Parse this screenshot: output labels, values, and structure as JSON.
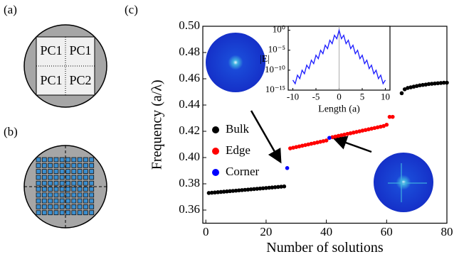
{
  "figure": {
    "panel_labels": [
      "(a)",
      "(b)",
      "(c)"
    ],
    "pc_labels": [
      "PC1",
      "PC1",
      "PC1",
      "PC2"
    ]
  },
  "chart_data": [
    {
      "type": "scatter",
      "xlabel": "Number of solutions",
      "ylabel": "Frequency (a/λ)",
      "xlim": [
        -1,
        80
      ],
      "ylim": [
        0.35,
        0.5
      ],
      "xticks": [
        0,
        20,
        40,
        60,
        80
      ],
      "yticks": [
        0.36,
        0.38,
        {
          "value": 0.4,
          "label": "0.40"
        },
        0.42,
        0.44,
        0.46,
        0.48,
        {
          "value": 0.5,
          "label": "0.50"
        }
      ],
      "legend": "left",
      "series": [
        {
          "name": "Bulk",
          "color": "#000000",
          "x": [
            1,
            2,
            3,
            4,
            5,
            6,
            7,
            8,
            9,
            10,
            11,
            12,
            13,
            14,
            15,
            16,
            17,
            18,
            19,
            20,
            21,
            22,
            23,
            24,
            25,
            26,
            65,
            66,
            67,
            68,
            69,
            70,
            71,
            72,
            73,
            74,
            75,
            76,
            77,
            78,
            79,
            80
          ],
          "values": [
            0.373,
            0.3732,
            0.3734,
            0.3736,
            0.3738,
            0.374,
            0.3742,
            0.3744,
            0.3746,
            0.3748,
            0.375,
            0.3752,
            0.3754,
            0.3756,
            0.3758,
            0.376,
            0.3762,
            0.3764,
            0.3766,
            0.3768,
            0.377,
            0.3772,
            0.3774,
            0.3776,
            0.3778,
            0.378,
            0.449,
            0.452,
            0.453,
            0.4535,
            0.454,
            0.4545,
            0.455,
            0.4553,
            0.4556,
            0.456,
            0.4562,
            0.4564,
            0.4566,
            0.4568,
            0.457,
            0.457
          ]
        },
        {
          "name": "Edge",
          "color": "#ff0000",
          "x": [
            28,
            29,
            30,
            31,
            32,
            33,
            34,
            35,
            36,
            37,
            38,
            39,
            40,
            42,
            43,
            44,
            45,
            46,
            47,
            48,
            49,
            50,
            51,
            52,
            53,
            54,
            55,
            56,
            57,
            58,
            59,
            60,
            61,
            62
          ],
          "values": [
            0.407,
            0.4075,
            0.408,
            0.4085,
            0.409,
            0.4095,
            0.41,
            0.4105,
            0.411,
            0.4115,
            0.412,
            0.4125,
            0.413,
            0.4155,
            0.416,
            0.4165,
            0.417,
            0.4175,
            0.418,
            0.4185,
            0.419,
            0.4195,
            0.42,
            0.4205,
            0.421,
            0.4215,
            0.422,
            0.4225,
            0.423,
            0.4235,
            0.424,
            0.425,
            0.431,
            0.431
          ]
        },
        {
          "name": "Corner",
          "color": "#0000ff",
          "x": [
            27,
            41
          ],
          "values": [
            0.392,
            0.415
          ]
        }
      ]
    },
    {
      "type": "line",
      "xlabel": "Length (a)",
      "ylabel": "|E|",
      "log_y": true,
      "color": "#1a1aff",
      "xlim": [
        -11,
        11
      ],
      "ylim": [
        1e-15,
        10
      ],
      "xticks": [
        -10,
        -5,
        0,
        5,
        10
      ],
      "yticks": [
        {
          "value": 1,
          "label": "10⁰"
        },
        {
          "value": 1e-05,
          "label": "10⁻⁵"
        },
        {
          "value": 1e-10,
          "label": "10⁻¹⁰"
        },
        {
          "value": 1e-15,
          "label": "10⁻¹⁵"
        }
      ],
      "x": [
        -10,
        -9.5,
        -9,
        -8.5,
        -8,
        -7.5,
        -7,
        -6.5,
        -6,
        -5.5,
        -5,
        -4.5,
        -4,
        -3.5,
        -3,
        -2.5,
        -2,
        -1.5,
        -1,
        -0.5,
        0,
        0.5,
        1,
        1.5,
        2,
        2.5,
        3,
        3.5,
        4,
        4.5,
        5,
        5.5,
        6,
        6.5,
        7,
        7.5,
        8,
        8.5,
        9,
        9.5,
        10
      ],
      "values": [
        3.2e-13,
        4.2e-14,
        5.6e-12,
        7.5e-13,
        1e-10,
        1.3e-11,
        1.8e-09,
        2.4e-10,
        3.2e-08,
        4.2e-09,
        5.6e-07,
        7.5e-08,
        1e-05,
        1.3e-06,
        0.00018,
        2.4e-05,
        0.0032,
        0.00042,
        0.056,
        0.0075,
        1,
        0.0075,
        0.056,
        0.00042,
        0.0032,
        2.4e-05,
        0.00018,
        1.3e-06,
        1e-05,
        7.5e-08,
        5.6e-07,
        4.2e-09,
        3.2e-08,
        2.4e-10,
        1.8e-09,
        1.3e-11,
        1e-10,
        7.5e-13,
        5.6e-12,
        4.2e-14,
        3.2e-13
      ]
    }
  ]
}
